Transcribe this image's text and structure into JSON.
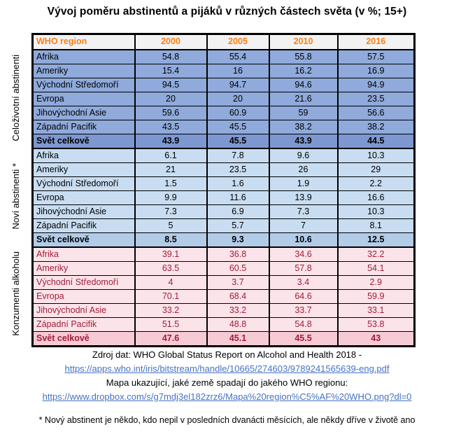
{
  "chart_data": {
    "type": "table",
    "title": "Vývoj poměru abstinentů a pijáků v různých částech světa (v %; 15+)",
    "columns": [
      "WHO region",
      "2000",
      "2005",
      "2010",
      "2016"
    ],
    "row_groups": [
      {
        "group_label": "Celoživotní abstinenti",
        "rows": [
          {
            "region": "Afrika",
            "values": [
              "54.8",
              "55.4",
              "55.8",
              "57.5"
            ],
            "is_total": false
          },
          {
            "region": "Ameriky",
            "values": [
              "15.4",
              "16",
              "16.2",
              "16.9"
            ],
            "is_total": false
          },
          {
            "region": "Východní Středomoří",
            "values": [
              "94.5",
              "94.7",
              "94.6",
              "94.9"
            ],
            "is_total": false
          },
          {
            "region": "Evropa",
            "values": [
              "20",
              "20",
              "21.6",
              "23.5"
            ],
            "is_total": false
          },
          {
            "region": "Jihovýchodní Asie",
            "values": [
              "59.6",
              "60.9",
              "59",
              "56.6"
            ],
            "is_total": false
          },
          {
            "region": "Západní Pacifik",
            "values": [
              "43.5",
              "45.5",
              "38.2",
              "38.2"
            ],
            "is_total": false
          },
          {
            "region": "Svět celkově",
            "values": [
              "43.9",
              "45.5",
              "43.9",
              "44.5"
            ],
            "is_total": true
          }
        ]
      },
      {
        "group_label": "Noví abstinenti *",
        "rows": [
          {
            "region": "Afrika",
            "values": [
              "6.1",
              "7.8",
              "9.6",
              "10.3"
            ],
            "is_total": false
          },
          {
            "region": "Ameriky",
            "values": [
              "21",
              "23.5",
              "26",
              "29"
            ],
            "is_total": false
          },
          {
            "region": "Východní Středomoří",
            "values": [
              "1.5",
              "1.6",
              "1.9",
              "2.2"
            ],
            "is_total": false
          },
          {
            "region": "Evropa",
            "values": [
              "9.9",
              "11.6",
              "13.9",
              "16.6"
            ],
            "is_total": false
          },
          {
            "region": "Jihovýchodní Asie",
            "values": [
              "7.3",
              "6.9",
              "7.3",
              "10.3"
            ],
            "is_total": false
          },
          {
            "region": "Západní Pacifik",
            "values": [
              "5",
              "5.7",
              "7",
              "8.1"
            ],
            "is_total": false
          },
          {
            "region": "Svět celkově",
            "values": [
              "8.5",
              "9.3",
              "10.6",
              "12.5"
            ],
            "is_total": true
          }
        ]
      },
      {
        "group_label": "Konzumenti alkoholu",
        "rows": [
          {
            "region": "Afrika",
            "values": [
              "39.1",
              "36.8",
              "34.6",
              "32.2"
            ],
            "is_total": false
          },
          {
            "region": "Ameriky",
            "values": [
              "63.5",
              "60.5",
              "57.8",
              "54.1"
            ],
            "is_total": false
          },
          {
            "region": "Východní Středomoří",
            "values": [
              "4",
              "3.7",
              "3.4",
              "2.9"
            ],
            "is_total": false
          },
          {
            "region": "Evropa",
            "values": [
              "70.1",
              "68.4",
              "64.6",
              "59.9"
            ],
            "is_total": false
          },
          {
            "region": "Jihovýchodní Asie",
            "values": [
              "33.2",
              "33.2",
              "33.7",
              "33.1"
            ],
            "is_total": false
          },
          {
            "region": "Západní Pacifik",
            "values": [
              "51.5",
              "48.8",
              "54.8",
              "53.8"
            ],
            "is_total": false
          },
          {
            "region": "Svět celkově",
            "values": [
              "47.6",
              "45.1",
              "45.5",
              "43"
            ],
            "is_total": true
          }
        ]
      }
    ]
  },
  "styles": {
    "header_bg": "#F2F2F2",
    "header_text_color": "#FA8016",
    "sections": [
      {
        "row_bg": "#8FAADB",
        "total_bg": "#7D97D0",
        "text_color": "#000000"
      },
      {
        "row_bg": "#C8DDF1",
        "total_bg": "#B2CCE8",
        "text_color": "#000000"
      },
      {
        "row_bg": "#FBE4E9",
        "total_bg": "#F7CBD6",
        "text_color": "#A21C38"
      }
    ],
    "link_color": "#4472C4"
  },
  "footer": {
    "source_line": "Zdroj dat: WHO Global Status Report on Alcohol and Health 2018 -",
    "source_link": "https://apps.who.int/iris/bitstream/handle/10665/274603/9789241565639-eng.pdf",
    "map_line": "Mapa ukazující, jaké země spadají do jakého WHO regionu:",
    "map_link": "https://www.dropbox.com/s/g7mdj3el182zrz6/Mapa%20region%C5%AF%20WHO.png?dl=0",
    "footnote": "* Nový abstinent je někdo, kdo nepil v posledních dvanácti měsících, ale někdy dříve v životě ano"
  }
}
